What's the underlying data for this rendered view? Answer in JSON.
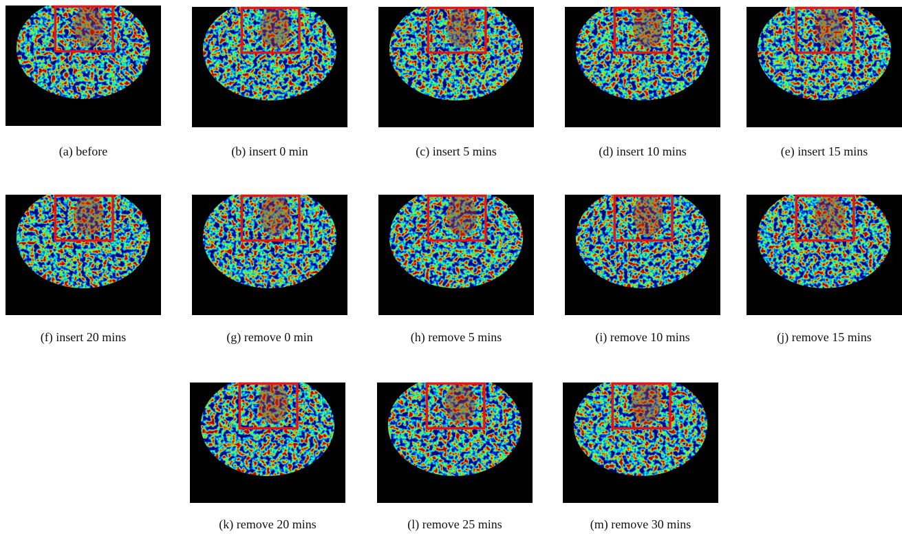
{
  "subfigures": [
    "(a) before",
    "(b) insert 0 min",
    "(c) insert 5 mins",
    "(d) insert 10 mins",
    "(e) insert 15 mins",
    "(f) insert 20 mins",
    "(g) remove 0 min",
    "(h) remove 5 mins",
    "(i) remove 10 mins",
    "(j) remove 15 mins",
    "(k) remove 20 mins",
    "(l) remove 25 mins",
    "(m) remove 30 mins"
  ]
}
